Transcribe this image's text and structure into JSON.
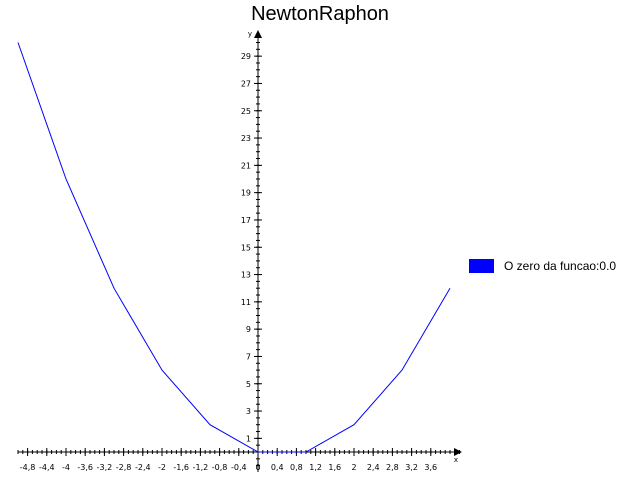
{
  "chart_data": {
    "type": "line",
    "title": "NewtonRaphon",
    "xlabel": "x",
    "ylabel": "y",
    "xlim": [
      -5.0,
      4.6
    ],
    "ylim": [
      0,
      31
    ],
    "grid": false,
    "legend_position": "right",
    "x_tick_labels": [
      "-4,8",
      "-4,4",
      "-4",
      "-3,6",
      "-3,2",
      "-2,8",
      "-2,4",
      "-2",
      "-1,6",
      "-1,2",
      "-0,8",
      "-0,4",
      "0",
      "0,4",
      "0,8",
      "1,2",
      "1,6",
      "2",
      "2,4",
      "2,8",
      "3,2",
      "3,6"
    ],
    "y_tick_labels": [
      "1",
      "3",
      "5",
      "7",
      "9",
      "11",
      "13",
      "15",
      "17",
      "19",
      "21",
      "23",
      "25",
      "27",
      "29"
    ],
    "series": [
      {
        "name": "O zero da funcao:0.0",
        "color": "#0000ff",
        "x": [
          -5,
          -4,
          -3,
          -2,
          -1,
          0,
          1,
          2,
          3,
          4
        ],
        "y": [
          30,
          20,
          12,
          6,
          2,
          0,
          0,
          2,
          6,
          12
        ]
      }
    ]
  }
}
